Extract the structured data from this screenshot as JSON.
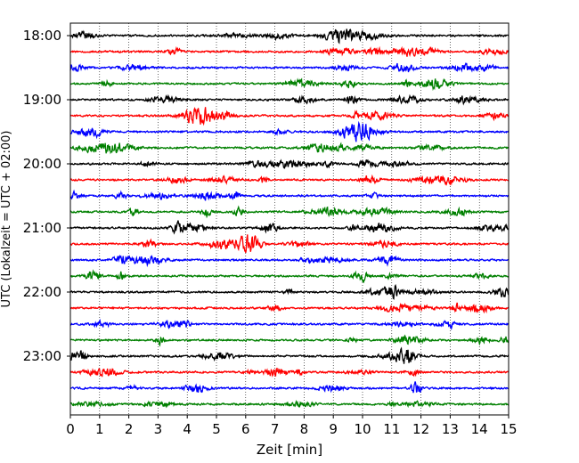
{
  "chart_data": {
    "type": "line",
    "title": "",
    "xlabel": "Zeit  [min]",
    "ylabel": "UTC (Lokalzeit = UTC + 02:00)",
    "xlim": [
      0,
      15
    ],
    "x_ticks": [
      "0",
      "1",
      "2",
      "3",
      "4",
      "5",
      "6",
      "7",
      "8",
      "9",
      "10",
      "11",
      "12",
      "13",
      "14",
      "15"
    ],
    "y_tick_labels": [
      "18:00",
      "19:00",
      "20:00",
      "21:00",
      "22:00",
      "23:00"
    ],
    "grid": "vertical dotted",
    "trace_colors": [
      "#000000",
      "#ff0000",
      "#0000ff",
      "#008000"
    ],
    "traces": [
      {
        "start": "18:00",
        "color": "#000000"
      },
      {
        "start": "18:15",
        "color": "#ff0000"
      },
      {
        "start": "18:30",
        "color": "#0000ff"
      },
      {
        "start": "18:45",
        "color": "#008000"
      },
      {
        "start": "19:00",
        "color": "#000000"
      },
      {
        "start": "19:15",
        "color": "#ff0000"
      },
      {
        "start": "19:30",
        "color": "#0000ff"
      },
      {
        "start": "19:45",
        "color": "#008000"
      },
      {
        "start": "20:00",
        "color": "#000000"
      },
      {
        "start": "20:15",
        "color": "#ff0000"
      },
      {
        "start": "20:30",
        "color": "#0000ff"
      },
      {
        "start": "20:45",
        "color": "#008000"
      },
      {
        "start": "21:00",
        "color": "#000000"
      },
      {
        "start": "21:15",
        "color": "#ff0000"
      },
      {
        "start": "21:30",
        "color": "#0000ff"
      },
      {
        "start": "21:45",
        "color": "#008000"
      },
      {
        "start": "22:00",
        "color": "#000000"
      },
      {
        "start": "22:15",
        "color": "#ff0000"
      },
      {
        "start": "22:30",
        "color": "#0000ff"
      },
      {
        "start": "22:45",
        "color": "#008000"
      },
      {
        "start": "23:00",
        "color": "#000000"
      },
      {
        "start": "23:15",
        "color": "#ff0000"
      },
      {
        "start": "23:30",
        "color": "#0000ff"
      },
      {
        "start": "23:45",
        "color": "#008000"
      }
    ]
  }
}
